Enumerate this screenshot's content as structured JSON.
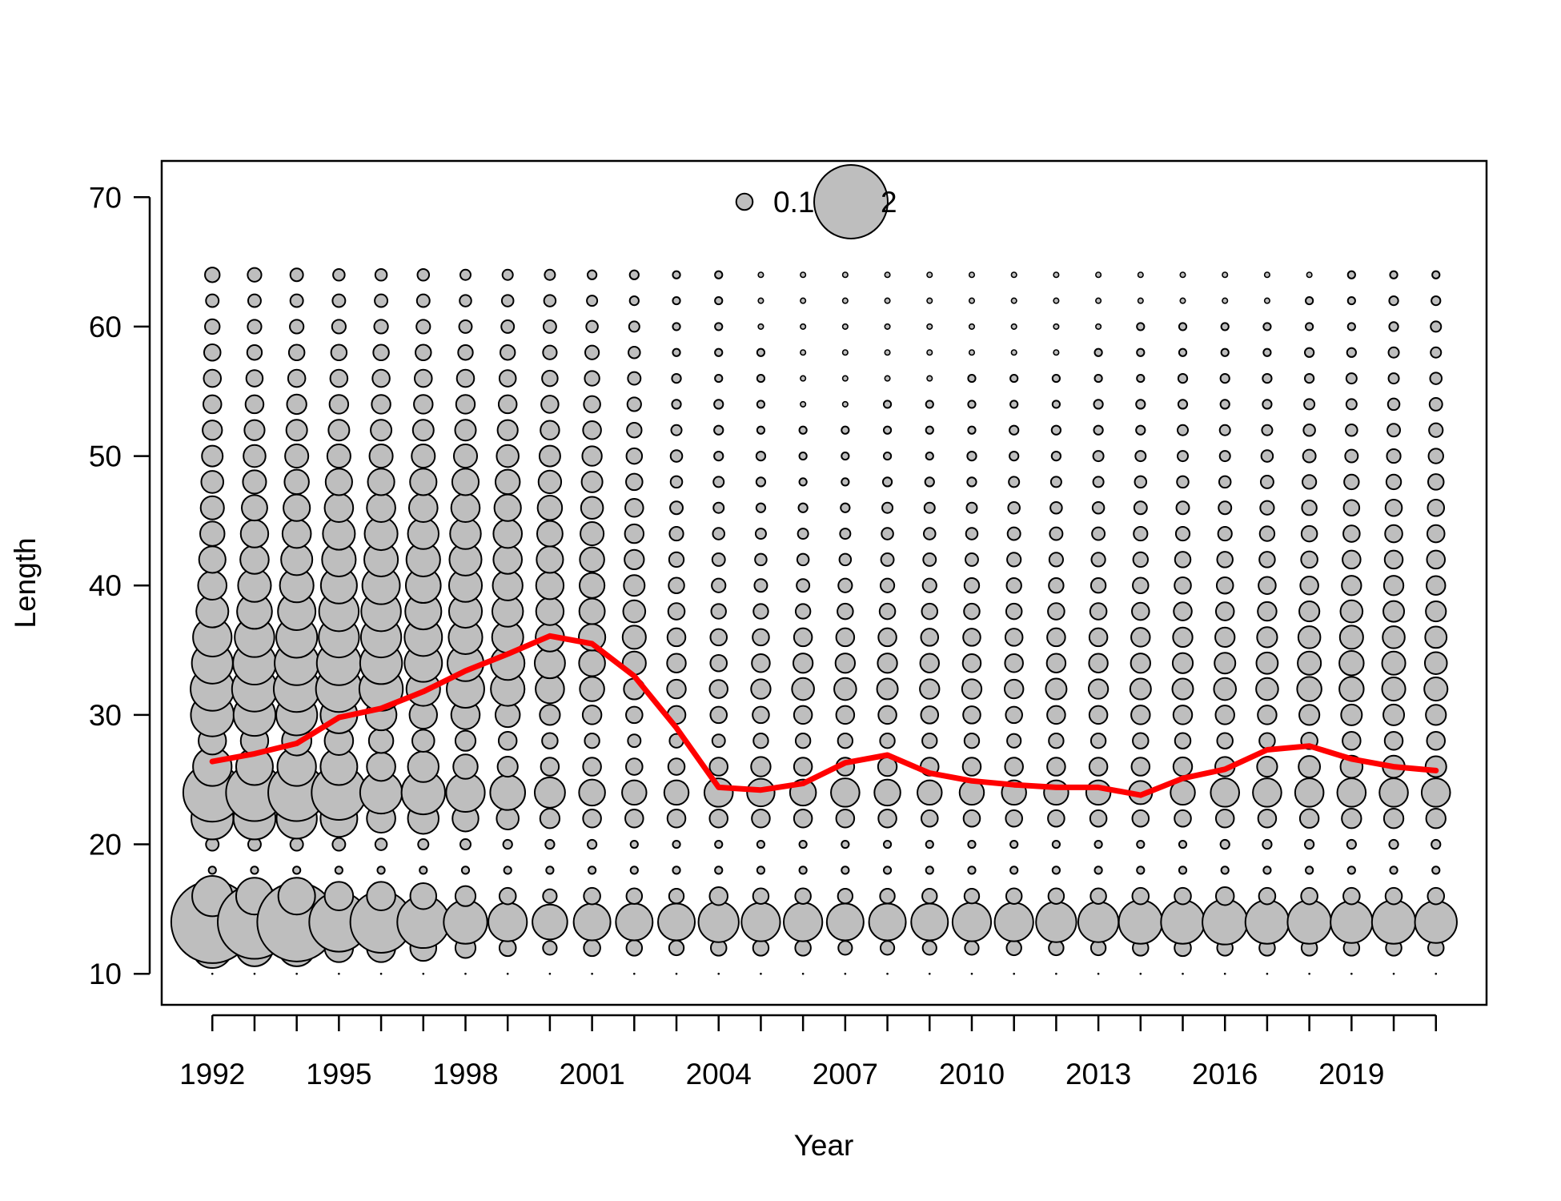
{
  "chart_data": {
    "type": "scatter",
    "subtype": "bubble",
    "xlabel": "Year",
    "ylabel": "Length",
    "xlim": [
      1990.8,
      2022.2
    ],
    "ylim": [
      7.6,
      72.8
    ],
    "x_ticks": [
      1992,
      1993,
      1994,
      1995,
      1996,
      1997,
      1998,
      1999,
      2000,
      2001,
      2002,
      2003,
      2004,
      2005,
      2006,
      2007,
      2008,
      2009,
      2010,
      2011,
      2012,
      2013,
      2014,
      2015,
      2016,
      2017,
      2018,
      2019,
      2020,
      2021
    ],
    "x_tick_labels": [
      "1992",
      "",
      "",
      "1995",
      "",
      "",
      "1998",
      "",
      "",
      "2001",
      "",
      "",
      "2004",
      "",
      "",
      "2007",
      "",
      "",
      "2010",
      "",
      "",
      "2013",
      "",
      "",
      "2016",
      "",
      "",
      "2019",
      "",
      ""
    ],
    "y_ticks": [
      10,
      20,
      30,
      40,
      50,
      60,
      70
    ],
    "y_tick_labels": [
      "10",
      "20",
      "30",
      "40",
      "50",
      "60",
      "70"
    ],
    "grid": false,
    "legend": {
      "placement": "top-center",
      "entries": [
        {
          "label": "0.1",
          "value": 0.1
        },
        {
          "label": "2",
          "value": 2
        }
      ]
    },
    "colors": {
      "bubble_fill": "#bebebe",
      "bubble_stroke": "#000000",
      "mean_line": "#ff0000"
    },
    "bubbles": {
      "x": [
        1992,
        1993,
        1994,
        1995,
        1996,
        1997,
        1998,
        1999,
        2000,
        2001,
        2002,
        2003,
        2004,
        2005,
        2006,
        2007,
        2008,
        2009,
        2010,
        2011,
        2012,
        2013,
        2014,
        2015,
        2016,
        2017,
        2018,
        2019,
        2020,
        2021
      ],
      "y": [
        10,
        12,
        14,
        16,
        18,
        20,
        22,
        24,
        26,
        28,
        30,
        32,
        34,
        36,
        38,
        40,
        42,
        44,
        46,
        48,
        50,
        52,
        54,
        56,
        58,
        60,
        62,
        64
      ],
      "values": [
        [
          0.0,
          0.6,
          2.5,
          0.6,
          0.02,
          0.06,
          0.65,
          1.25,
          0.55,
          0.28,
          0.68,
          0.7,
          0.62,
          0.55,
          0.38,
          0.3,
          0.26,
          0.22,
          0.2,
          0.18,
          0.16,
          0.14,
          0.12,
          0.11,
          0.1,
          0.08,
          0.06,
          0.08
        ],
        [
          0.0,
          0.5,
          2.0,
          0.5,
          0.02,
          0.06,
          0.65,
          1.2,
          0.5,
          0.28,
          0.65,
          0.75,
          0.68,
          0.58,
          0.45,
          0.4,
          0.3,
          0.28,
          0.24,
          0.2,
          0.18,
          0.15,
          0.12,
          0.1,
          0.08,
          0.07,
          0.06,
          0.07
        ],
        [
          0.0,
          0.5,
          2.3,
          0.5,
          0.02,
          0.06,
          0.6,
          1.2,
          0.55,
          0.32,
          0.62,
          0.78,
          0.72,
          0.62,
          0.52,
          0.42,
          0.36,
          0.3,
          0.26,
          0.22,
          0.2,
          0.16,
          0.14,
          0.11,
          0.09,
          0.07,
          0.06,
          0.06
        ],
        [
          0.0,
          0.3,
          1.3,
          0.3,
          0.02,
          0.06,
          0.5,
          1.1,
          0.5,
          0.3,
          0.5,
          0.78,
          0.72,
          0.6,
          0.58,
          0.48,
          0.42,
          0.38,
          0.3,
          0.26,
          0.2,
          0.16,
          0.13,
          0.11,
          0.09,
          0.07,
          0.06,
          0.05
        ],
        [
          0.0,
          0.3,
          1.4,
          0.3,
          0.02,
          0.05,
          0.3,
          0.65,
          0.3,
          0.22,
          0.35,
          0.7,
          0.65,
          0.6,
          0.58,
          0.52,
          0.42,
          0.4,
          0.3,
          0.26,
          0.2,
          0.16,
          0.13,
          0.11,
          0.09,
          0.07,
          0.06,
          0.05
        ],
        [
          0.0,
          0.25,
          1.0,
          0.25,
          0.02,
          0.04,
          0.35,
          0.7,
          0.35,
          0.18,
          0.28,
          0.42,
          0.52,
          0.52,
          0.48,
          0.45,
          0.42,
          0.35,
          0.3,
          0.26,
          0.2,
          0.16,
          0.13,
          0.11,
          0.09,
          0.07,
          0.06,
          0.05
        ],
        [
          0.0,
          0.15,
          0.7,
          0.15,
          0.02,
          0.04,
          0.25,
          0.55,
          0.22,
          0.15,
          0.3,
          0.52,
          0.48,
          0.42,
          0.4,
          0.4,
          0.38,
          0.35,
          0.3,
          0.26,
          0.2,
          0.16,
          0.13,
          0.11,
          0.08,
          0.06,
          0.05,
          0.04
        ],
        [
          0.0,
          0.1,
          0.55,
          0.1,
          0.02,
          0.03,
          0.18,
          0.45,
          0.15,
          0.12,
          0.22,
          0.42,
          0.42,
          0.36,
          0.35,
          0.33,
          0.3,
          0.3,
          0.26,
          0.22,
          0.18,
          0.15,
          0.12,
          0.1,
          0.08,
          0.06,
          0.05,
          0.04
        ],
        [
          0.0,
          0.07,
          0.45,
          0.07,
          0.02,
          0.03,
          0.14,
          0.34,
          0.12,
          0.09,
          0.15,
          0.3,
          0.34,
          0.3,
          0.28,
          0.28,
          0.26,
          0.24,
          0.22,
          0.19,
          0.16,
          0.13,
          0.11,
          0.09,
          0.07,
          0.06,
          0.05,
          0.04
        ],
        [
          0.0,
          0.1,
          0.5,
          0.1,
          0.02,
          0.03,
          0.12,
          0.25,
          0.12,
          0.08,
          0.13,
          0.22,
          0.25,
          0.26,
          0.24,
          0.23,
          0.22,
          0.2,
          0.18,
          0.16,
          0.14,
          0.12,
          0.1,
          0.08,
          0.07,
          0.05,
          0.04,
          0.03
        ],
        [
          0.0,
          0.09,
          0.5,
          0.09,
          0.02,
          0.02,
          0.12,
          0.22,
          0.1,
          0.06,
          0.1,
          0.16,
          0.2,
          0.2,
          0.18,
          0.16,
          0.14,
          0.13,
          0.12,
          0.1,
          0.09,
          0.08,
          0.07,
          0.06,
          0.05,
          0.04,
          0.03,
          0.03
        ],
        [
          0.0,
          0.08,
          0.5,
          0.08,
          0.02,
          0.02,
          0.12,
          0.22,
          0.1,
          0.07,
          0.12,
          0.13,
          0.13,
          0.12,
          0.1,
          0.09,
          0.08,
          0.07,
          0.06,
          0.05,
          0.05,
          0.04,
          0.03,
          0.03,
          0.02,
          0.02,
          0.02,
          0.02
        ],
        [
          0.0,
          0.09,
          0.6,
          0.12,
          0.02,
          0.02,
          0.12,
          0.3,
          0.12,
          0.06,
          0.1,
          0.12,
          0.1,
          0.1,
          0.08,
          0.07,
          0.06,
          0.05,
          0.04,
          0.04,
          0.03,
          0.03,
          0.03,
          0.02,
          0.02,
          0.02,
          0.02,
          0.02
        ],
        [
          0.0,
          0.09,
          0.55,
          0.09,
          0.02,
          0.02,
          0.12,
          0.28,
          0.14,
          0.08,
          0.1,
          0.14,
          0.12,
          0.1,
          0.08,
          0.06,
          0.05,
          0.04,
          0.03,
          0.03,
          0.03,
          0.02,
          0.02,
          0.02,
          0.02,
          0.01,
          0.01,
          0.01
        ],
        [
          0.0,
          0.09,
          0.55,
          0.09,
          0.02,
          0.02,
          0.12,
          0.25,
          0.12,
          0.08,
          0.12,
          0.18,
          0.14,
          0.12,
          0.08,
          0.06,
          0.05,
          0.04,
          0.03,
          0.02,
          0.02,
          0.02,
          0.01,
          0.01,
          0.01,
          0.01,
          0.01,
          0.01
        ],
        [
          0.0,
          0.07,
          0.5,
          0.08,
          0.02,
          0.02,
          0.12,
          0.3,
          0.12,
          0.08,
          0.12,
          0.18,
          0.14,
          0.12,
          0.09,
          0.07,
          0.05,
          0.04,
          0.03,
          0.02,
          0.02,
          0.02,
          0.01,
          0.01,
          0.01,
          0.01,
          0.01,
          0.01
        ],
        [
          0.0,
          0.07,
          0.5,
          0.08,
          0.02,
          0.02,
          0.12,
          0.25,
          0.13,
          0.08,
          0.12,
          0.16,
          0.14,
          0.12,
          0.09,
          0.07,
          0.06,
          0.05,
          0.04,
          0.03,
          0.02,
          0.02,
          0.02,
          0.01,
          0.01,
          0.01,
          0.01,
          0.01
        ],
        [
          0.0,
          0.07,
          0.5,
          0.08,
          0.02,
          0.02,
          0.1,
          0.22,
          0.12,
          0.08,
          0.11,
          0.14,
          0.13,
          0.11,
          0.09,
          0.07,
          0.06,
          0.05,
          0.04,
          0.03,
          0.02,
          0.02,
          0.02,
          0.01,
          0.01,
          0.01,
          0.01,
          0.01
        ],
        [
          0.0,
          0.07,
          0.55,
          0.08,
          0.02,
          0.02,
          0.1,
          0.22,
          0.12,
          0.08,
          0.11,
          0.14,
          0.12,
          0.11,
          0.09,
          0.08,
          0.06,
          0.05,
          0.04,
          0.03,
          0.03,
          0.02,
          0.02,
          0.02,
          0.01,
          0.01,
          0.01,
          0.01
        ],
        [
          0.0,
          0.08,
          0.55,
          0.09,
          0.02,
          0.02,
          0.1,
          0.22,
          0.12,
          0.07,
          0.1,
          0.13,
          0.12,
          0.11,
          0.09,
          0.08,
          0.07,
          0.06,
          0.05,
          0.04,
          0.03,
          0.03,
          0.02,
          0.02,
          0.01,
          0.01,
          0.01,
          0.01
        ],
        [
          0.0,
          0.08,
          0.6,
          0.09,
          0.02,
          0.02,
          0.1,
          0.22,
          0.12,
          0.08,
          0.12,
          0.16,
          0.13,
          0.12,
          0.1,
          0.08,
          0.07,
          0.06,
          0.05,
          0.04,
          0.03,
          0.03,
          0.02,
          0.02,
          0.01,
          0.01,
          0.01,
          0.01
        ],
        [
          0.0,
          0.08,
          0.6,
          0.09,
          0.02,
          0.02,
          0.1,
          0.22,
          0.12,
          0.08,
          0.12,
          0.14,
          0.13,
          0.12,
          0.1,
          0.08,
          0.07,
          0.06,
          0.05,
          0.04,
          0.04,
          0.03,
          0.03,
          0.02,
          0.02,
          0.01,
          0.01,
          0.01
        ],
        [
          0.0,
          0.09,
          0.7,
          0.1,
          0.02,
          0.02,
          0.1,
          0.2,
          0.12,
          0.09,
          0.13,
          0.16,
          0.14,
          0.13,
          0.11,
          0.09,
          0.08,
          0.07,
          0.06,
          0.05,
          0.04,
          0.03,
          0.03,
          0.02,
          0.02,
          0.02,
          0.01,
          0.01
        ],
        [
          0.0,
          0.1,
          0.7,
          0.1,
          0.02,
          0.02,
          0.1,
          0.22,
          0.13,
          0.09,
          0.13,
          0.16,
          0.15,
          0.14,
          0.12,
          0.1,
          0.09,
          0.07,
          0.06,
          0.05,
          0.04,
          0.04,
          0.03,
          0.03,
          0.02,
          0.02,
          0.01,
          0.01
        ],
        [
          0.0,
          0.09,
          0.75,
          0.12,
          0.02,
          0.03,
          0.12,
          0.3,
          0.14,
          0.09,
          0.13,
          0.18,
          0.16,
          0.14,
          0.12,
          0.1,
          0.09,
          0.07,
          0.06,
          0.05,
          0.04,
          0.04,
          0.03,
          0.03,
          0.02,
          0.02,
          0.01,
          0.01
        ],
        [
          0.0,
          0.09,
          0.7,
          0.1,
          0.02,
          0.03,
          0.12,
          0.3,
          0.15,
          0.09,
          0.13,
          0.18,
          0.17,
          0.15,
          0.13,
          0.11,
          0.09,
          0.08,
          0.07,
          0.06,
          0.05,
          0.04,
          0.03,
          0.03,
          0.02,
          0.02,
          0.01,
          0.01
        ],
        [
          0.0,
          0.09,
          0.7,
          0.1,
          0.02,
          0.03,
          0.13,
          0.3,
          0.17,
          0.1,
          0.15,
          0.22,
          0.2,
          0.18,
          0.15,
          0.12,
          0.1,
          0.09,
          0.08,
          0.07,
          0.06,
          0.05,
          0.04,
          0.03,
          0.03,
          0.02,
          0.02,
          0.01
        ],
        [
          0.0,
          0.09,
          0.65,
          0.1,
          0.02,
          0.03,
          0.14,
          0.3,
          0.18,
          0.12,
          0.16,
          0.22,
          0.22,
          0.2,
          0.18,
          0.14,
          0.12,
          0.1,
          0.09,
          0.08,
          0.06,
          0.05,
          0.04,
          0.04,
          0.03,
          0.02,
          0.02,
          0.02
        ],
        [
          0.0,
          0.09,
          0.7,
          0.1,
          0.02,
          0.03,
          0.14,
          0.3,
          0.18,
          0.12,
          0.16,
          0.2,
          0.2,
          0.18,
          0.16,
          0.14,
          0.12,
          0.11,
          0.1,
          0.08,
          0.07,
          0.06,
          0.05,
          0.04,
          0.04,
          0.03,
          0.03,
          0.02
        ],
        [
          0.0,
          0.09,
          0.65,
          0.1,
          0.02,
          0.03,
          0.14,
          0.3,
          0.16,
          0.12,
          0.15,
          0.2,
          0.18,
          0.17,
          0.15,
          0.13,
          0.12,
          0.11,
          0.1,
          0.09,
          0.08,
          0.07,
          0.06,
          0.05,
          0.04,
          0.04,
          0.03,
          0.02
        ]
      ]
    },
    "series": [
      {
        "type": "line",
        "x": [
          1992,
          1993,
          1994,
          1995,
          1996,
          1997,
          1998,
          1999,
          2000,
          2001,
          2002,
          2003,
          2004,
          2005,
          2006,
          2007,
          2008,
          2009,
          2010,
          2011,
          2012,
          2013,
          2014,
          2015,
          2016,
          2017,
          2018,
          2019,
          2020,
          2021
        ],
        "values": [
          26.4,
          27.0,
          27.8,
          29.8,
          30.5,
          31.8,
          33.4,
          34.7,
          36.1,
          35.5,
          33.0,
          29.0,
          24.4,
          24.2,
          24.7,
          26.3,
          26.9,
          25.5,
          24.9,
          24.6,
          24.4,
          24.4,
          23.8,
          25.1,
          25.8,
          27.3,
          27.6,
          26.6,
          26.0,
          25.7
        ]
      }
    ]
  }
}
